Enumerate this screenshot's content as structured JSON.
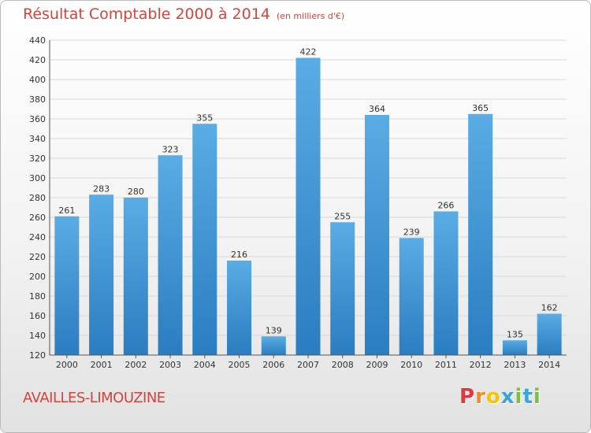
{
  "title": "Résultat Comptable 2000 à 2014",
  "subtitle": "(en milliers d'€)",
  "commune": "AVAILLES-LIMOUZINE",
  "logo": {
    "letters": [
      "P",
      "r",
      "o",
      "x",
      "i",
      "t",
      "i"
    ]
  },
  "colors": {
    "title": "#d0453c",
    "bar_top": "#5aace4",
    "bar_bottom": "#2a7dc0",
    "grid": "#d9d9d9",
    "logo": [
      "#e2373f",
      "#f28c1c",
      "#f6c400",
      "#3aa3dc",
      "#7cbf3a",
      "#3aa3dc",
      "#7cbf3a"
    ]
  },
  "chart_data": {
    "type": "bar",
    "categories": [
      "2000",
      "2001",
      "2002",
      "2003",
      "2004",
      "2005",
      "2006",
      "2007",
      "2008",
      "2009",
      "2010",
      "2011",
      "2012",
      "2013",
      "2014"
    ],
    "values": [
      261,
      283,
      280,
      323,
      355,
      216,
      139,
      422,
      255,
      364,
      239,
      266,
      365,
      135,
      162
    ],
    "ylim": [
      120,
      440
    ],
    "yticks": [
      120,
      140,
      160,
      180,
      200,
      220,
      240,
      260,
      280,
      300,
      320,
      340,
      360,
      380,
      400,
      420,
      440
    ],
    "grid": true,
    "data_labels": true
  }
}
